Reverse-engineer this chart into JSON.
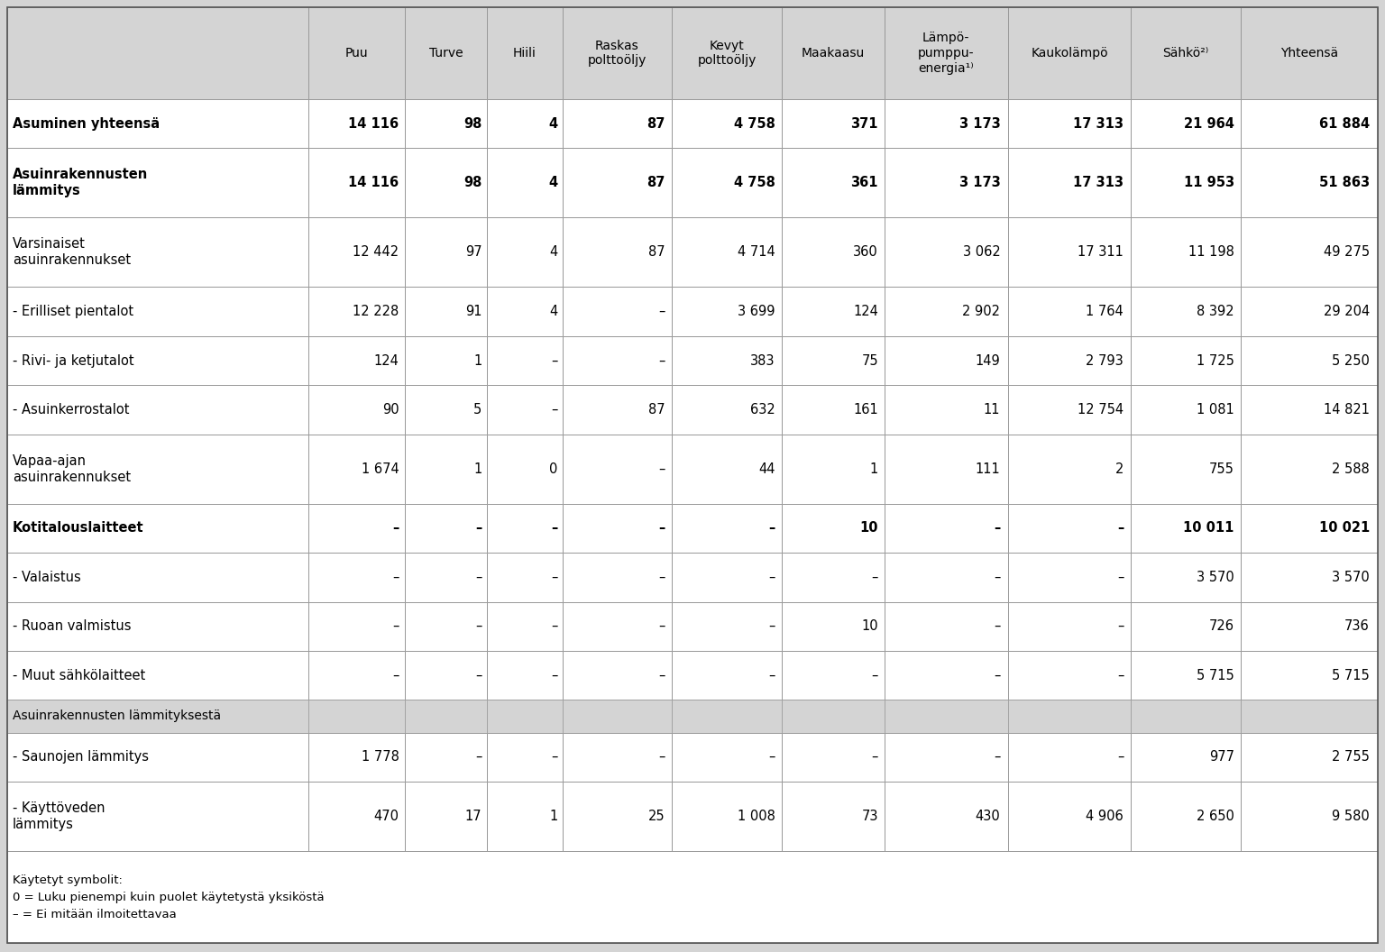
{
  "col_headers": [
    "",
    "Puu",
    "Turve",
    "Hiili",
    "Raskas\npolttoöljy",
    "Kevyt\npolttoöljy",
    "Maakaasu",
    "Lämpö-\npumppu-\nenergia¹⁾",
    "Kaukolämpö",
    "Sähkö²⁾",
    "Yhteensä"
  ],
  "rows": [
    {
      "label": "Asuminen yhteensä",
      "bold": true,
      "values": [
        "14 116",
        "98",
        "4",
        "87",
        "4 758",
        "371",
        "3 173",
        "17 313",
        "21 964",
        "61 884"
      ],
      "separator_row": false
    },
    {
      "label": "Asuinrakennusten\nlämmitys",
      "bold": true,
      "values": [
        "14 116",
        "98",
        "4",
        "87",
        "4 758",
        "361",
        "3 173",
        "17 313",
        "11 953",
        "51 863"
      ],
      "separator_row": false
    },
    {
      "label": "Varsinaiset\nasuinrakennukset",
      "bold": false,
      "values": [
        "12 442",
        "97",
        "4",
        "87",
        "4 714",
        "360",
        "3 062",
        "17 311",
        "11 198",
        "49 275"
      ],
      "separator_row": false
    },
    {
      "label": "- Erilliset pientalot",
      "bold": false,
      "values": [
        "12 228",
        "91",
        "4",
        "–",
        "3 699",
        "124",
        "2 902",
        "1 764",
        "8 392",
        "29 204"
      ],
      "separator_row": false
    },
    {
      "label": "- Rivi- ja ketjutalot",
      "bold": false,
      "values": [
        "124",
        "1",
        "–",
        "–",
        "383",
        "75",
        "149",
        "2 793",
        "1 725",
        "5 250"
      ],
      "separator_row": false
    },
    {
      "label": "- Asuinkerrostalot",
      "bold": false,
      "values": [
        "90",
        "5",
        "–",
        "87",
        "632",
        "161",
        "11",
        "12 754",
        "1 081",
        "14 821"
      ],
      "separator_row": false
    },
    {
      "label": "Vapaa-ajan\nasuinrakennukset",
      "bold": false,
      "values": [
        "1 674",
        "1",
        "0",
        "–",
        "44",
        "1",
        "111",
        "2",
        "755",
        "2 588"
      ],
      "separator_row": false
    },
    {
      "label": "Kotitalouslaitteet",
      "bold": true,
      "values": [
        "–",
        "–",
        "–",
        "–",
        "–",
        "10",
        "–",
        "–",
        "10 011",
        "10 021"
      ],
      "separator_row": false
    },
    {
      "label": "- Valaistus",
      "bold": false,
      "values": [
        "–",
        "–",
        "–",
        "–",
        "–",
        "–",
        "–",
        "–",
        "3 570",
        "3 570"
      ],
      "separator_row": false
    },
    {
      "label": "- Ruoan valmistus",
      "bold": false,
      "values": [
        "–",
        "–",
        "–",
        "–",
        "–",
        "10",
        "–",
        "–",
        "726",
        "736"
      ],
      "separator_row": false
    },
    {
      "label": "- Muut sähkölaitteet",
      "bold": false,
      "values": [
        "–",
        "–",
        "–",
        "–",
        "–",
        "–",
        "–",
        "–",
        "5 715",
        "5 715"
      ],
      "separator_row": false
    },
    {
      "label": "Asuinrakennusten lämmityksestä",
      "bold": false,
      "values": [
        "",
        "",
        "",
        "",
        "",
        "",
        "",
        "",
        "",
        ""
      ],
      "separator_row": true
    },
    {
      "label": "- Saunojen lämmitys",
      "bold": false,
      "values": [
        "1 778",
        "–",
        "–",
        "–",
        "–",
        "–",
        "–",
        "–",
        "977",
        "2 755"
      ],
      "separator_row": false
    },
    {
      "label": "- Käyttöveden\nlämmitys",
      "bold": false,
      "values": [
        "470",
        "17",
        "1",
        "25",
        "1 008",
        "73",
        "430",
        "4 906",
        "2 650",
        "9 580"
      ],
      "separator_row": false
    }
  ],
  "footnote_lines": [
    "Käytetyt symbolit:",
    "0 = Luku pienempi kuin puolet käytetystä yksiköstä",
    "– = Ei mitään ilmoitettavaa"
  ],
  "bg_color": "#d4d4d4",
  "cell_bg": "#ffffff",
  "border_color": "#999999",
  "text_color": "#000000",
  "col_widths_rel": [
    22,
    7,
    6,
    5.5,
    8,
    8,
    7.5,
    9,
    9,
    8,
    10
  ]
}
